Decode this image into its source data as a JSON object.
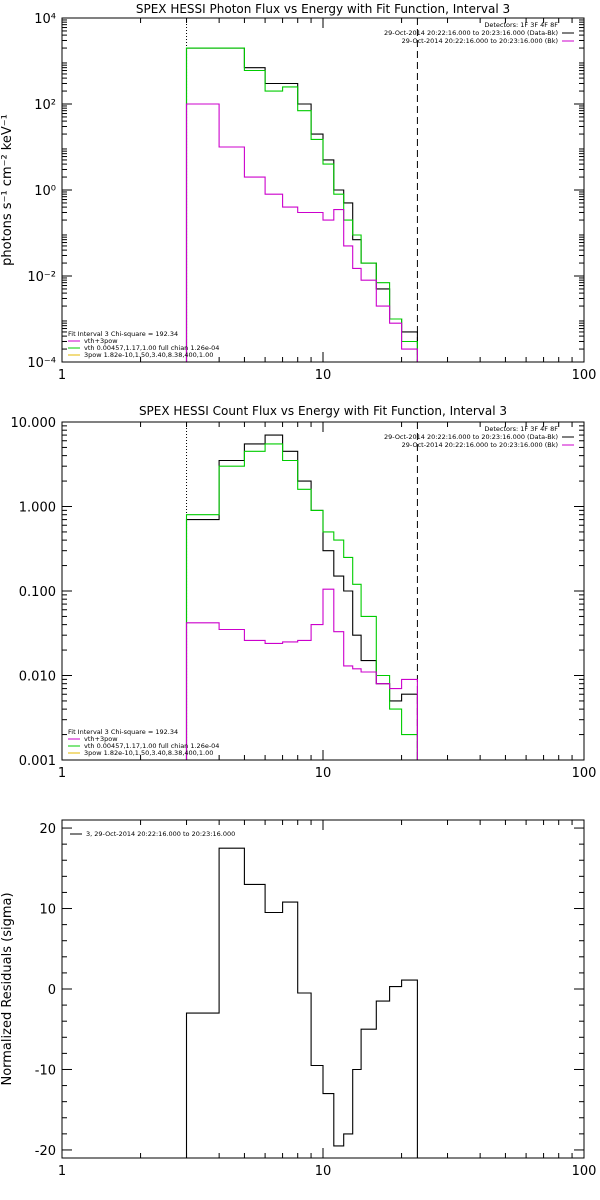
{
  "chart_data": [
    {
      "type": "line",
      "title": "SPEX HESSI Photon Flux vs Energy with Fit Function, Interval 3",
      "ylabel": "photons s⁻¹ cm⁻² keV⁻¹",
      "xlabel": "",
      "xscale": "log",
      "yscale": "log",
      "xlim": [
        1,
        100
      ],
      "ylim": [
        0.0001,
        10000
      ],
      "x_tick_labels": [
        "1",
        "10",
        "100"
      ],
      "y_tick_labels": [
        "10⁴",
        "10²",
        "10⁰",
        "10⁻²",
        "10⁻⁴"
      ],
      "fit_range_lines": [
        {
          "x": 3,
          "style": "dotted"
        },
        {
          "x": 23,
          "style": "dashed"
        }
      ],
      "legend_top_right": [
        "Detectors: 1F 3F 4F 8F",
        "29-Oct-2014 20:22:16.000 to 20:23:16.000 (Data-Bk)",
        "29-Oct-2014 20:22:16.000 to 20:23:16.000 (Bk)"
      ],
      "legend_bottom_left": [
        "Fit Interval  3    Chi-square = 192.34",
        "vth+3pow",
        "vth 0.00457,1.17,1.00   full chian 1.26e-04",
        "3pow  1.82e-10,1.50,3.40,8.38,400,1.00"
      ],
      "bin_edges": [
        3,
        4,
        5,
        6,
        7,
        8,
        9,
        10,
        11,
        12,
        13,
        14,
        16,
        18,
        20,
        23
      ],
      "series": [
        {
          "color": "#000000",
          "values": [
            2000,
            2000,
            700,
            300,
            300,
            100,
            20,
            5,
            1,
            0.5,
            0.07,
            0.02,
            0.005,
            0.001,
            0.0005
          ]
        },
        {
          "color": "#00cc00",
          "values": [
            2000,
            2000,
            600,
            200,
            250,
            70,
            15,
            4,
            0.8,
            0.2,
            0.09,
            0.02,
            0.007,
            0.001,
            0.0003
          ]
        },
        {
          "color": "#cc00cc",
          "values": [
            100,
            10,
            2,
            0.8,
            0.4,
            0.3,
            0.3,
            0.2,
            0.35,
            0.05,
            0.015,
            0.008,
            0.002,
            0.0008,
            0.0002
          ]
        }
      ]
    },
    {
      "type": "line",
      "title": "SPEX HESSI Count Flux vs Energy with Fit Function, Interval 3",
      "ylabel": "",
      "xlabel": "",
      "xscale": "log",
      "yscale": "log",
      "xlim": [
        1,
        100
      ],
      "ylim": [
        0.001,
        10
      ],
      "x_tick_labels": [
        "1",
        "10",
        "100"
      ],
      "y_tick_labels": [
        "10.000",
        "1.000",
        "0.100",
        "0.010",
        "0.001"
      ],
      "fit_range_lines": [
        {
          "x": 3,
          "style": "dotted"
        },
        {
          "x": 23,
          "style": "dashed"
        }
      ],
      "legend_top_right": [
        "Detectors: 1F 3F 4F 8F",
        "29-Oct-2014 20:22:16.000 to 20:23:16.000 (Data-Bk)",
        "29-Oct-2014 20:22:16.000 to 20:23:16.000 (Bk)"
      ],
      "legend_bottom_left": [
        "Fit Interval  3    Chi-square = 192.34",
        "vth+3pow",
        "vth 0.00457,1.17,1.00   full chian 1.26e-04",
        "3pow  1.82e-10,1.50,3.40,8.38,400,1.00"
      ],
      "bin_edges": [
        3,
        4,
        5,
        6,
        7,
        8,
        9,
        10,
        11,
        12,
        13,
        14,
        16,
        18,
        20,
        23
      ],
      "series": [
        {
          "color": "#000000",
          "values": [
            0.7,
            3.5,
            5.5,
            7,
            4.5,
            2,
            0.9,
            0.3,
            0.15,
            0.1,
            0.03,
            0.015,
            0.008,
            0.005,
            0.006
          ]
        },
        {
          "color": "#00cc00",
          "values": [
            0.8,
            3,
            4.5,
            5.5,
            3.5,
            1.6,
            0.9,
            0.5,
            0.4,
            0.25,
            0.12,
            0.05,
            0.01,
            0.004,
            0.002
          ]
        },
        {
          "color": "#cc00cc",
          "values": [
            0.042,
            0.035,
            0.026,
            0.024,
            0.025,
            0.026,
            0.04,
            0.105,
            0.033,
            0.013,
            0.012,
            0.011,
            0.008,
            0.007,
            0.009
          ]
        }
      ]
    },
    {
      "type": "line",
      "title": "",
      "ylabel": "Normalized Residuals (sigma)",
      "xlabel": "",
      "xscale": "log",
      "yscale": "linear",
      "xlim": [
        1,
        100
      ],
      "ylim": [
        -21,
        21
      ],
      "x_tick_labels": [
        "1",
        "10",
        "100"
      ],
      "y_tick_labels": [
        "20",
        "10",
        "0",
        "-10",
        "-20"
      ],
      "legend_top_left": [
        "3, 29-Oct-2014 20:22:16.000 to 20:23:16.000"
      ],
      "bin_edges": [
        3,
        4,
        5,
        6,
        7,
        8,
        9,
        10,
        11,
        12,
        13,
        14,
        16,
        18,
        20,
        23
      ],
      "series": [
        {
          "color": "#000000",
          "values": [
            -3,
            17.5,
            13,
            9.5,
            10.8,
            -0.5,
            -9.5,
            -13,
            -19.5,
            -18,
            -10,
            -5,
            -1.5,
            0.3,
            1.1
          ]
        }
      ]
    }
  ]
}
